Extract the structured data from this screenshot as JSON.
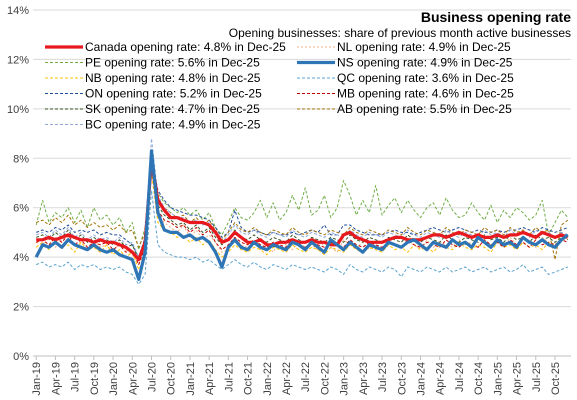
{
  "chart_data": {
    "type": "line",
    "title": "Business opening rate",
    "subtitle": "Opening businesses: share of previous month active  businesses",
    "xlabel": "",
    "ylabel": "",
    "ylim": [
      0,
      14
    ],
    "yticks": [
      "0%",
      "2%",
      "4%",
      "6%",
      "8%",
      "10%",
      "12%",
      "14%"
    ],
    "ytick_values": [
      0,
      2,
      4,
      6,
      8,
      10,
      12,
      14
    ],
    "grid": true,
    "legend_position": "top",
    "x_start": "Jan-19",
    "x_end": "Dec-25",
    "x_tick_labels": [
      "Jan-19",
      "Apr-19",
      "Jul-19",
      "Oct-19",
      "Jan-20",
      "Apr-20",
      "Jul-20",
      "Oct-20",
      "Jan-21",
      "Apr-21",
      "Jul-21",
      "Oct-21",
      "Jan-22",
      "Apr-22",
      "Jul-22",
      "Oct-22",
      "Jan-23",
      "Apr-23",
      "Jul-23",
      "Oct-23",
      "Jan-24",
      "Apr-24",
      "Jul-24",
      "Oct-24",
      "Jan-25",
      "Apr-25",
      "Jul-25",
      "Oct-25"
    ],
    "series": [
      {
        "name": "Canada opening rate: 4.8% in Dec-25",
        "color": "#e8191e",
        "dash": "",
        "width": 3.2,
        "values": [
          4.7,
          4.7,
          4.8,
          4.7,
          4.8,
          4.9,
          4.8,
          4.7,
          4.7,
          4.6,
          4.7,
          4.6,
          4.6,
          4.5,
          4.4,
          4.2,
          3.9,
          4.6,
          7.9,
          6.3,
          5.9,
          5.6,
          5.6,
          5.5,
          5.4,
          5.4,
          5.4,
          5.3,
          5.0,
          4.6,
          4.7,
          5.0,
          4.8,
          4.6,
          4.6,
          4.7,
          4.5,
          4.5,
          4.6,
          4.6,
          4.7,
          4.6,
          4.6,
          4.7,
          4.6,
          4.6,
          4.5,
          4.5,
          4.9,
          5.0,
          4.8,
          4.7,
          4.6,
          4.6,
          4.6,
          4.7,
          4.8,
          4.8,
          4.7,
          4.7,
          4.7,
          4.8,
          4.9,
          4.9,
          4.8,
          4.9,
          5.0,
          4.9,
          4.8,
          4.9,
          4.8,
          4.8,
          4.9,
          4.8,
          4.9,
          4.9,
          5.0,
          4.9,
          4.8,
          5.0,
          4.9,
          4.8,
          4.9,
          4.8
        ]
      },
      {
        "name": "NL opening rate: 4.9% in Dec-25",
        "color": "#f4b183",
        "dash": "2 2",
        "width": 1,
        "values": [
          4.6,
          4.5,
          4.9,
          4.4,
          4.7,
          4.8,
          4.5,
          4.6,
          4.3,
          4.7,
          4.4,
          4.5,
          4.2,
          4.6,
          4.3,
          4.1,
          3.7,
          4.2,
          7.5,
          5.7,
          5.4,
          5.2,
          5.0,
          5.3,
          4.8,
          5.1,
          4.7,
          4.9,
          4.6,
          4.2,
          4.3,
          4.8,
          4.5,
          4.4,
          4.6,
          4.3,
          4.5,
          4.2,
          4.6,
          4.5,
          4.3,
          4.6,
          4.4,
          4.5,
          4.3,
          4.6,
          4.4,
          4.2,
          4.7,
          4.5,
          4.4,
          4.6,
          4.3,
          4.5,
          4.4,
          4.6,
          4.5,
          4.4,
          4.6,
          4.5,
          4.3,
          4.7,
          4.4,
          4.6,
          4.5,
          4.4,
          4.7,
          4.5,
          4.6,
          4.4,
          4.7,
          4.5,
          4.6,
          4.4,
          4.8,
          4.5,
          4.7,
          4.6,
          4.4,
          4.8,
          4.6,
          4.5,
          4.7,
          4.9
        ]
      },
      {
        "name": "PE opening rate: 5.6% in Dec-25",
        "color": "#70ad47",
        "dash": "3 2",
        "width": 1,
        "values": [
          5.3,
          6.3,
          5.4,
          5.8,
          5.6,
          6.0,
          5.4,
          5.9,
          5.2,
          6.0,
          5.5,
          5.7,
          5.3,
          5.6,
          5.0,
          5.4,
          4.3,
          5.2,
          7.3,
          6.6,
          6.2,
          6.0,
          5.8,
          6.0,
          5.7,
          5.9,
          5.5,
          5.8,
          5.2,
          4.9,
          5.4,
          6.0,
          5.6,
          5.5,
          5.8,
          6.3,
          5.6,
          6.2,
          5.5,
          5.8,
          6.5,
          5.9,
          6.8,
          5.7,
          5.9,
          6.5,
          5.6,
          6.0,
          7.1,
          6.5,
          5.7,
          6.3,
          5.8,
          6.9,
          5.7,
          6.1,
          6.4,
          5.8,
          6.3,
          5.9,
          5.6,
          6.0,
          6.2,
          5.7,
          6.4,
          5.9,
          5.6,
          5.7,
          6.2,
          5.8,
          5.5,
          6.1,
          5.4,
          5.9,
          5.6,
          6.0,
          5.8,
          5.5,
          5.7,
          6.3,
          4.9,
          5.4,
          5.9,
          5.6
        ]
      },
      {
        "name": "NS opening rate: 4.9% in Dec-25",
        "color": "#2e75b6",
        "dash": "",
        "width": 3.2,
        "values": [
          4.0,
          4.5,
          4.4,
          4.6,
          4.4,
          4.7,
          4.5,
          4.4,
          4.3,
          4.5,
          4.3,
          4.2,
          4.3,
          4.1,
          4.0,
          3.9,
          3.1,
          4.2,
          8.3,
          5.8,
          5.1,
          5.0,
          5.0,
          4.8,
          4.9,
          4.7,
          4.8,
          4.6,
          4.2,
          3.6,
          4.4,
          4.7,
          4.4,
          4.3,
          4.6,
          4.4,
          4.3,
          4.5,
          4.4,
          4.3,
          4.6,
          4.5,
          4.3,
          4.6,
          4.4,
          4.2,
          4.7,
          4.5,
          4.3,
          4.6,
          4.4,
          4.2,
          4.5,
          4.4,
          4.3,
          4.6,
          4.5,
          4.4,
          4.6,
          4.7,
          4.5,
          4.3,
          4.6,
          4.5,
          4.4,
          4.7,
          4.5,
          4.6,
          4.4,
          4.8,
          4.6,
          4.4,
          4.7,
          4.5,
          4.6,
          4.4,
          4.8,
          4.6,
          4.5,
          4.7,
          4.5,
          4.4,
          4.7,
          4.9
        ]
      },
      {
        "name": "NB opening rate: 4.8% in Dec-25",
        "color": "#ffc000",
        "dash": "3 2",
        "width": 1,
        "values": [
          4.4,
          4.6,
          4.3,
          4.7,
          4.4,
          4.5,
          4.2,
          4.6,
          4.3,
          4.4,
          4.2,
          4.5,
          4.1,
          4.3,
          4.0,
          4.2,
          3.5,
          4.0,
          7.4,
          5.4,
          5.1,
          5.0,
          4.8,
          4.9,
          4.6,
          4.8,
          4.5,
          4.7,
          4.3,
          4.0,
          4.2,
          4.5,
          4.3,
          4.2,
          4.4,
          4.3,
          4.1,
          4.4,
          4.3,
          4.2,
          4.5,
          4.3,
          4.2,
          4.4,
          4.3,
          4.1,
          4.4,
          4.3,
          4.2,
          4.5,
          4.3,
          4.2,
          4.4,
          4.3,
          4.2,
          4.5,
          4.3,
          4.4,
          4.2,
          4.5,
          4.3,
          4.4,
          4.2,
          4.5,
          4.4,
          4.3,
          4.6,
          4.4,
          4.3,
          4.5,
          4.4,
          4.2,
          4.6,
          4.4,
          4.5,
          4.3,
          4.6,
          4.4,
          4.5,
          4.3,
          4.6,
          4.5,
          4.7,
          4.8
        ]
      },
      {
        "name": "QC opening rate: 3.6% in Dec-25",
        "color": "#5ba3d0",
        "dash": "3 2",
        "width": 1,
        "values": [
          3.7,
          3.8,
          3.6,
          3.7,
          3.6,
          3.8,
          3.5,
          3.7,
          3.6,
          3.7,
          3.5,
          3.6,
          3.5,
          3.6,
          3.4,
          3.3,
          2.9,
          3.3,
          6.7,
          4.5,
          4.2,
          4.1,
          4.0,
          4.0,
          3.9,
          4.0,
          3.8,
          3.9,
          3.7,
          3.5,
          3.7,
          3.9,
          3.7,
          3.6,
          3.8,
          3.6,
          3.5,
          3.7,
          3.6,
          3.5,
          3.7,
          3.6,
          3.5,
          3.6,
          3.5,
          3.4,
          3.6,
          3.5,
          3.3,
          3.7,
          3.5,
          3.4,
          3.6,
          3.5,
          3.4,
          3.6,
          3.5,
          3.2,
          3.6,
          3.5,
          3.4,
          3.6,
          3.5,
          3.4,
          3.6,
          3.4,
          3.5,
          3.6,
          3.4,
          3.5,
          3.6,
          3.4,
          3.5,
          3.6,
          3.4,
          3.5,
          3.7,
          3.4,
          3.5,
          3.6,
          3.3,
          3.4,
          3.5,
          3.6
        ]
      },
      {
        "name": "ON opening rate: 5.2% in Dec-25",
        "color": "#1f4e9a",
        "dash": "3 2",
        "width": 1,
        "values": [
          5.0,
          5.1,
          5.0,
          5.2,
          5.1,
          5.3,
          5.0,
          5.1,
          5.0,
          5.1,
          4.9,
          5.0,
          4.9,
          4.9,
          4.7,
          4.5,
          4.0,
          4.8,
          8.0,
          6.7,
          6.3,
          6.0,
          5.9,
          5.8,
          5.7,
          5.7,
          5.6,
          5.5,
          5.2,
          4.8,
          5.0,
          5.9,
          5.2,
          5.0,
          5.1,
          5.0,
          4.9,
          5.0,
          4.9,
          4.9,
          5.0,
          4.9,
          5.0,
          5.1,
          5.0,
          5.3,
          4.9,
          4.9,
          5.3,
          5.3,
          5.1,
          5.0,
          4.9,
          4.9,
          4.9,
          5.0,
          5.1,
          5.0,
          5.0,
          4.9,
          5.0,
          5.1,
          5.2,
          5.1,
          5.0,
          5.1,
          5.2,
          5.1,
          5.0,
          5.1,
          5.0,
          5.0,
          5.1,
          5.0,
          5.1,
          5.1,
          5.2,
          5.1,
          5.0,
          5.2,
          5.1,
          5.0,
          5.1,
          5.2
        ]
      },
      {
        "name": "MB opening rate: 4.6% in Dec-25",
        "color": "#c00000",
        "dash": "3 2",
        "width": 1,
        "values": [
          4.6,
          4.7,
          4.5,
          4.8,
          4.6,
          4.9,
          4.5,
          4.7,
          4.4,
          4.6,
          4.5,
          4.6,
          4.3,
          4.5,
          4.2,
          4.3,
          3.7,
          4.4,
          7.6,
          5.9,
          5.5,
          5.4,
          5.2,
          5.3,
          5.0,
          5.2,
          4.9,
          5.1,
          4.6,
          4.3,
          4.5,
          4.8,
          4.6,
          4.5,
          4.7,
          4.5,
          4.4,
          4.6,
          4.5,
          4.4,
          4.7,
          4.5,
          4.4,
          4.6,
          4.5,
          4.4,
          4.6,
          4.5,
          4.4,
          4.7,
          4.5,
          4.4,
          4.6,
          4.5,
          4.4,
          4.6,
          4.5,
          4.4,
          4.7,
          4.5,
          4.4,
          4.6,
          4.5,
          4.4,
          4.7,
          4.5,
          4.4,
          4.6,
          4.5,
          4.4,
          4.7,
          4.5,
          4.6,
          4.4,
          4.7,
          4.5,
          4.6,
          4.4,
          4.7,
          4.5,
          4.6,
          4.5,
          4.7,
          4.6
        ]
      },
      {
        "name": "SK opening rate: 4.7% in Dec-25",
        "color": "#375623",
        "dash": "3 2",
        "width": 1,
        "values": [
          4.8,
          4.9,
          4.7,
          5.0,
          4.8,
          5.1,
          4.7,
          4.9,
          4.6,
          4.8,
          4.6,
          4.7,
          4.5,
          4.7,
          4.4,
          4.5,
          3.9,
          4.6,
          7.8,
          6.1,
          5.7,
          5.5,
          5.3,
          5.4,
          5.1,
          5.3,
          5.0,
          5.2,
          4.8,
          4.5,
          4.7,
          5.1,
          4.8,
          4.7,
          4.9,
          4.7,
          4.6,
          4.8,
          4.7,
          4.6,
          4.9,
          4.7,
          4.6,
          4.8,
          4.7,
          4.6,
          4.8,
          4.7,
          4.6,
          4.9,
          4.7,
          4.6,
          4.8,
          4.7,
          4.6,
          4.8,
          4.7,
          4.6,
          4.9,
          4.7,
          4.6,
          4.8,
          4.7,
          4.6,
          4.9,
          4.7,
          4.6,
          4.8,
          4.7,
          4.6,
          4.9,
          4.7,
          4.8,
          4.6,
          4.9,
          4.7,
          4.8,
          4.6,
          4.9,
          4.7,
          4.8,
          4.6,
          4.8,
          4.7
        ]
      },
      {
        "name": "AB opening rate: 5.5% in Dec-25",
        "color": "#a5730a",
        "dash": "3 2",
        "width": 1,
        "values": [
          5.4,
          5.5,
          5.3,
          5.6,
          5.4,
          5.7,
          5.3,
          5.5,
          5.2,
          5.4,
          5.2,
          5.3,
          5.1,
          5.3,
          5.0,
          5.1,
          4.4,
          5.0,
          7.9,
          6.4,
          6.0,
          5.8,
          5.6,
          5.7,
          5.4,
          5.6,
          5.3,
          5.5,
          5.1,
          4.7,
          5.0,
          5.4,
          5.1,
          5.0,
          5.2,
          5.0,
          4.9,
          5.1,
          5.0,
          4.9,
          5.2,
          5.0,
          4.9,
          5.1,
          5.0,
          4.9,
          5.1,
          5.0,
          4.9,
          5.2,
          5.0,
          4.9,
          5.1,
          5.0,
          4.9,
          5.1,
          5.0,
          4.9,
          5.2,
          5.0,
          4.9,
          5.1,
          5.0,
          4.9,
          5.2,
          5.0,
          4.9,
          5.1,
          5.0,
          4.9,
          5.2,
          5.0,
          5.1,
          4.9,
          5.2,
          5.0,
          5.1,
          4.9,
          5.2,
          5.0,
          5.1,
          3.9,
          5.3,
          5.5
        ]
      },
      {
        "name": "BC opening rate: 4.9% in Dec-25",
        "color": "#8ea9db",
        "dash": "3 2",
        "width": 1,
        "values": [
          4.9,
          5.0,
          4.8,
          5.1,
          4.9,
          5.2,
          4.8,
          5.0,
          4.7,
          4.9,
          4.7,
          4.8,
          4.6,
          4.8,
          4.5,
          4.6,
          4.0,
          4.7,
          8.8,
          6.5,
          6.0,
          5.8,
          5.6,
          5.6,
          5.4,
          5.5,
          5.3,
          5.4,
          5.0,
          4.6,
          4.9,
          5.3,
          5.0,
          4.9,
          5.1,
          4.9,
          4.8,
          5.0,
          4.9,
          4.8,
          5.1,
          4.9,
          4.8,
          5.0,
          4.9,
          4.8,
          5.0,
          4.9,
          4.8,
          5.1,
          4.9,
          4.8,
          5.0,
          4.9,
          4.8,
          5.0,
          4.9,
          4.8,
          5.1,
          4.9,
          4.8,
          5.0,
          4.9,
          4.8,
          5.1,
          4.9,
          4.8,
          5.0,
          4.9,
          4.8,
          5.1,
          4.9,
          5.0,
          4.8,
          5.1,
          4.9,
          5.0,
          4.8,
          5.1,
          4.9,
          5.0,
          4.8,
          5.0,
          4.9
        ]
      }
    ]
  }
}
